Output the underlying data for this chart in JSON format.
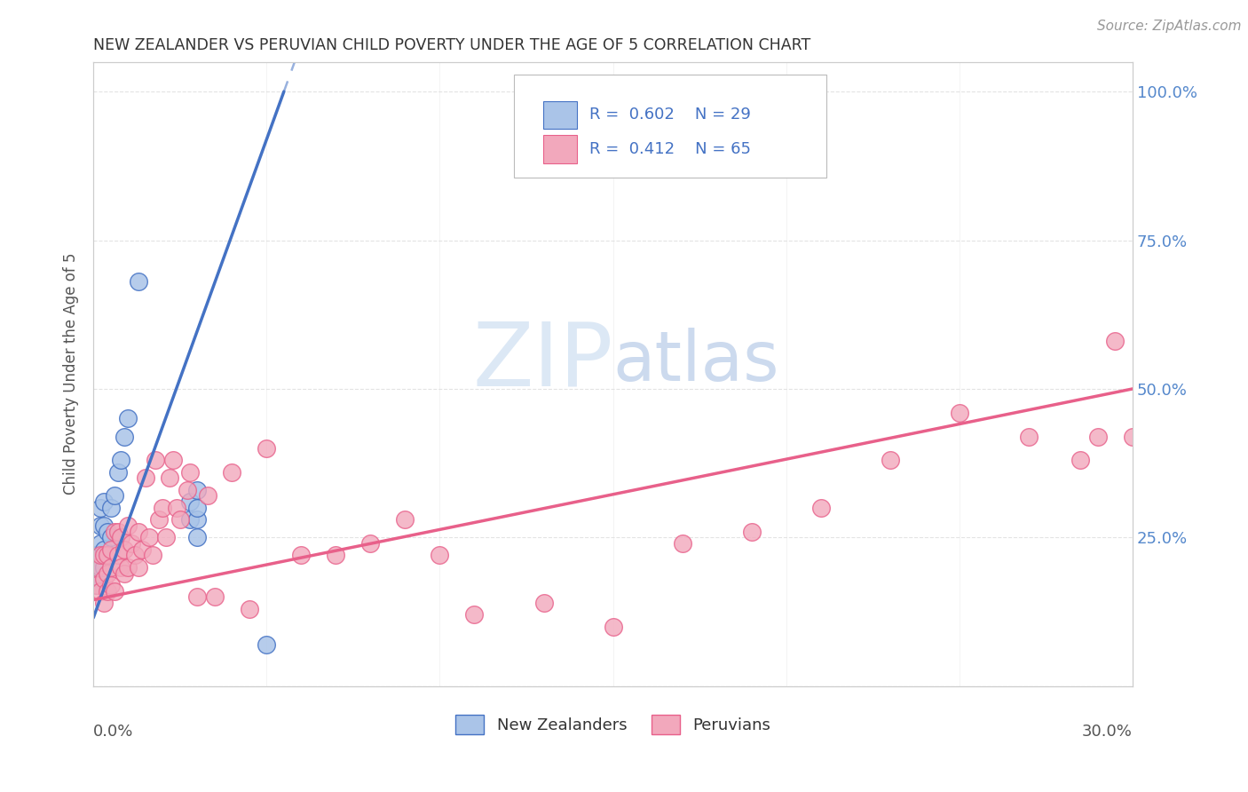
{
  "title": "NEW ZEALANDER VS PERUVIAN CHILD POVERTY UNDER THE AGE OF 5 CORRELATION CHART",
  "source": "Source: ZipAtlas.com",
  "ylabel": "Child Poverty Under the Age of 5",
  "yticks": [
    0.0,
    0.25,
    0.5,
    0.75,
    1.0
  ],
  "ytick_labels_right": [
    "",
    "25.0%",
    "50.0%",
    "75.0%",
    "100.0%"
  ],
  "xlim": [
    0.0,
    0.3
  ],
  "ylim": [
    0.0,
    1.05
  ],
  "color_nz": "#aac4e8",
  "color_pe": "#f2a8bc",
  "color_nz_line": "#4472c4",
  "color_pe_line": "#e8608a",
  "watermark_zip": "ZIP",
  "watermark_atlas": "atlas",
  "nz_line_x0": 0.0,
  "nz_line_y0": 0.115,
  "nz_line_x1": 0.055,
  "nz_line_y1": 1.0,
  "nz_line_dash_x1": 0.09,
  "pe_line_x0": 0.0,
  "pe_line_y0": 0.145,
  "pe_line_x1": 0.3,
  "pe_line_y1": 0.5,
  "nz_x": [
    0.001,
    0.001,
    0.001,
    0.002,
    0.002,
    0.002,
    0.002,
    0.002,
    0.003,
    0.003,
    0.003,
    0.003,
    0.004,
    0.004,
    0.005,
    0.005,
    0.006,
    0.007,
    0.008,
    0.009,
    0.01,
    0.013,
    0.028,
    0.028,
    0.03,
    0.03,
    0.03,
    0.03,
    0.05
  ],
  "nz_y": [
    0.17,
    0.19,
    0.22,
    0.18,
    0.2,
    0.24,
    0.27,
    0.3,
    0.2,
    0.23,
    0.27,
    0.31,
    0.22,
    0.26,
    0.25,
    0.3,
    0.32,
    0.36,
    0.38,
    0.42,
    0.45,
    0.68,
    0.28,
    0.31,
    0.25,
    0.28,
    0.3,
    0.33,
    0.07
  ],
  "pe_x": [
    0.001,
    0.001,
    0.002,
    0.002,
    0.003,
    0.003,
    0.003,
    0.004,
    0.004,
    0.004,
    0.005,
    0.005,
    0.005,
    0.006,
    0.006,
    0.007,
    0.007,
    0.008,
    0.008,
    0.009,
    0.009,
    0.01,
    0.01,
    0.011,
    0.012,
    0.013,
    0.013,
    0.014,
    0.015,
    0.016,
    0.017,
    0.018,
    0.019,
    0.02,
    0.021,
    0.022,
    0.023,
    0.024,
    0.025,
    0.027,
    0.028,
    0.03,
    0.033,
    0.035,
    0.04,
    0.045,
    0.05,
    0.06,
    0.07,
    0.08,
    0.09,
    0.1,
    0.11,
    0.13,
    0.15,
    0.17,
    0.19,
    0.21,
    0.23,
    0.25,
    0.27,
    0.285,
    0.29,
    0.295,
    0.3
  ],
  "pe_y": [
    0.17,
    0.2,
    0.16,
    0.22,
    0.14,
    0.18,
    0.22,
    0.16,
    0.19,
    0.22,
    0.17,
    0.2,
    0.23,
    0.16,
    0.26,
    0.22,
    0.26,
    0.2,
    0.25,
    0.19,
    0.23,
    0.2,
    0.27,
    0.24,
    0.22,
    0.2,
    0.26,
    0.23,
    0.35,
    0.25,
    0.22,
    0.38,
    0.28,
    0.3,
    0.25,
    0.35,
    0.38,
    0.3,
    0.28,
    0.33,
    0.36,
    0.15,
    0.32,
    0.15,
    0.36,
    0.13,
    0.4,
    0.22,
    0.22,
    0.24,
    0.28,
    0.22,
    0.12,
    0.14,
    0.1,
    0.24,
    0.26,
    0.3,
    0.38,
    0.46,
    0.42,
    0.38,
    0.42,
    0.58,
    0.42
  ]
}
